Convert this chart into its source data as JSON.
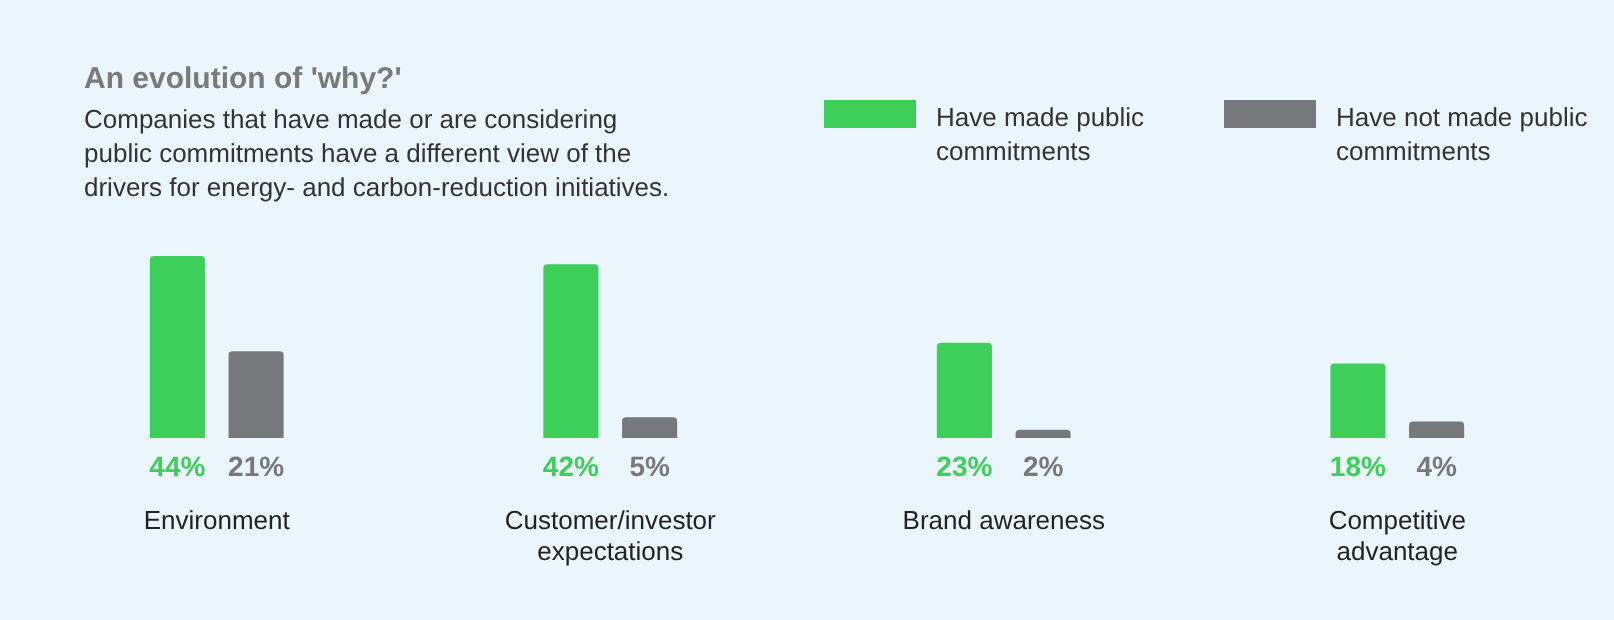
{
  "chart_data": {
    "type": "bar",
    "title": "An evolution of 'why?'",
    "subtitle": "Companies that have made or are considering public commitments have a different view of the drivers for energy- and carbon-reduction initiatives.",
    "categories": [
      "Environment",
      "Customer/investor expectations",
      "Brand awareness",
      "Competitive advantage"
    ],
    "series": [
      {
        "name": "Have made public commitments",
        "color": "#3ecf5a",
        "values": [
          44,
          42,
          23,
          18
        ],
        "value_labels": [
          "44%",
          "42%",
          "23%",
          "18%"
        ]
      },
      {
        "name": "Have not made public commitments",
        "color": "#77787c",
        "values": [
          21,
          5,
          2,
          4
        ],
        "value_labels": [
          "21%",
          "5%",
          "2%",
          "4%"
        ]
      }
    ],
    "legend": "top right",
    "grid": false
  }
}
